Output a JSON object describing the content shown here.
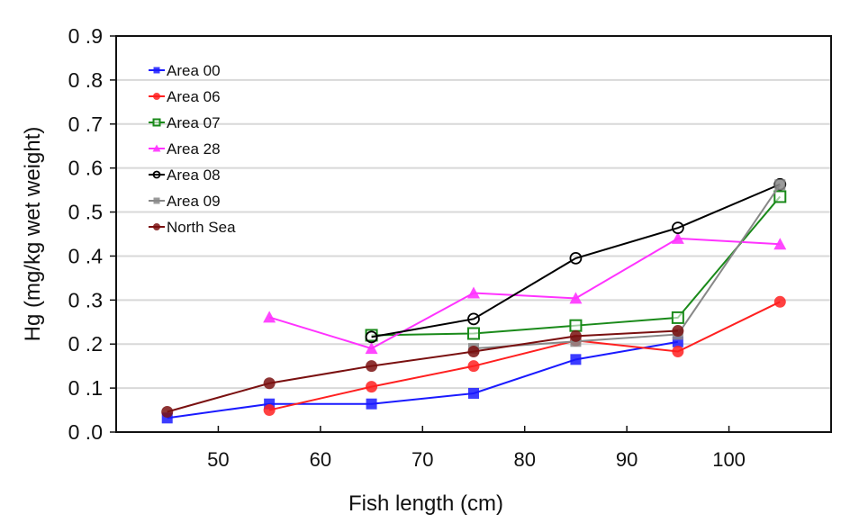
{
  "chart_data": {
    "type": "line",
    "title": "",
    "xlabel": "Fish length (cm)",
    "ylabel": "Hg (mg/kg wet weight)",
    "xlim": [
      40,
      110
    ],
    "ylim": [
      0,
      0.9
    ],
    "xticks": [
      50,
      60,
      70,
      80,
      90,
      100
    ],
    "xtick_labels": [
      "50",
      "60",
      "70",
      "80",
      "90",
      "100"
    ],
    "yticks": [
      0,
      0.1,
      0.2,
      0.3,
      0.4,
      0.5,
      0.6,
      0.7,
      0.8,
      0.9
    ],
    "ytick_labels": [
      "0 .0",
      "0 .1",
      "0 .2",
      "0 .3",
      "0 .4",
      "0 .5",
      "0 .6",
      "0 .7",
      "0 .8",
      "0 .9"
    ],
    "grid": "horizontal",
    "legend_position": "top-left",
    "series": [
      {
        "name": "Area 00",
        "color": "#1a1aff",
        "marker": "square-filled",
        "x": [
          45,
          55,
          65,
          75,
          85,
          95
        ],
        "y": [
          0.032,
          0.064,
          0.064,
          0.088,
          0.165,
          0.205
        ]
      },
      {
        "name": "Area 06",
        "color": "#ff2020",
        "marker": "circle-filled",
        "x": [
          55,
          65,
          75,
          85,
          95,
          105
        ],
        "y": [
          0.05,
          0.103,
          0.15,
          0.208,
          0.183,
          0.296
        ]
      },
      {
        "name": "Area 07",
        "color": "#1a8a1a",
        "marker": "square-open",
        "x": [
          65,
          75,
          85,
          95,
          105
        ],
        "y": [
          0.22,
          0.224,
          0.242,
          0.26,
          0.535
        ]
      },
      {
        "name": "Area 28",
        "color": "#ff33ff",
        "marker": "triangle-filled",
        "x": [
          55,
          65,
          75,
          85,
          95,
          105
        ],
        "y": [
          0.261,
          0.19,
          0.316,
          0.304,
          0.44,
          0.427
        ]
      },
      {
        "name": "Area 08",
        "color": "#000000",
        "marker": "circle-open",
        "x": [
          65,
          75,
          85,
          95,
          105
        ],
        "y": [
          0.216,
          0.257,
          0.395,
          0.464,
          0.563
        ]
      },
      {
        "name": "Area 09",
        "color": "#888888",
        "marker": "square-filled",
        "x": [
          75,
          85,
          95,
          105
        ],
        "y": [
          0.19,
          0.206,
          0.222,
          0.562
        ]
      },
      {
        "name": "North Sea",
        "color": "#7a1010",
        "marker": "circle-filled",
        "x": [
          45,
          55,
          65,
          75,
          85,
          95
        ],
        "y": [
          0.046,
          0.111,
          0.15,
          0.183,
          0.218,
          0.23
        ]
      }
    ]
  }
}
